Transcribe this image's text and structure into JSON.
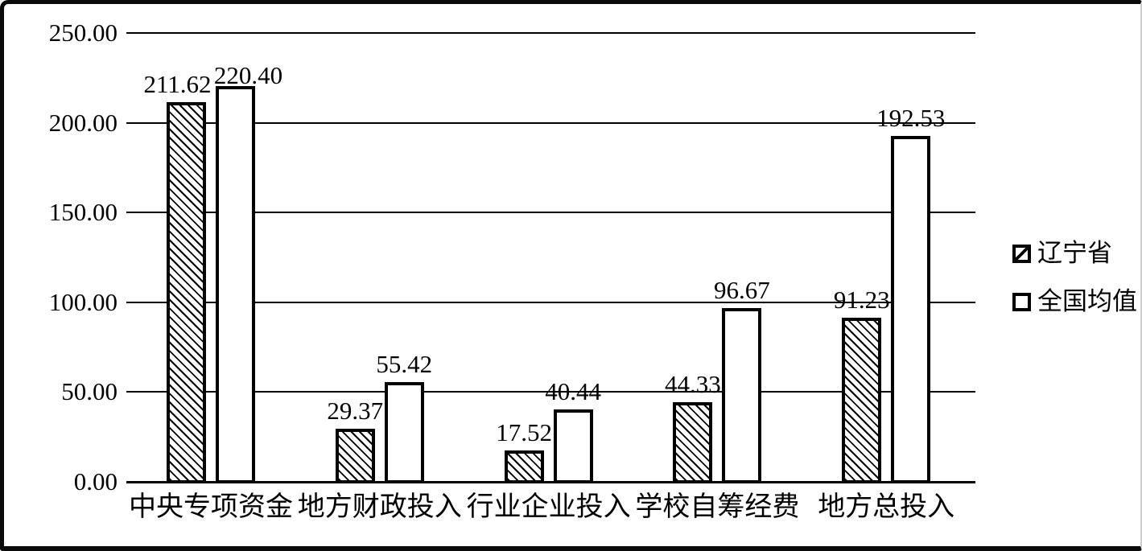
{
  "chart_data": {
    "type": "bar",
    "categories": [
      "中央专项资金",
      "地方财政投入",
      "行业企业投入",
      "学校自筹经费",
      "地方总投入"
    ],
    "series": [
      {
        "name": "辽宁省",
        "pattern": "diagonal-hatch",
        "values": [
          211.62,
          29.37,
          17.52,
          44.33,
          91.23
        ]
      },
      {
        "name": "全国均值",
        "pattern": "plain-white",
        "values": [
          220.4,
          55.42,
          40.44,
          96.67,
          192.53
        ]
      }
    ],
    "value_labels": [
      [
        "211.62",
        "29.37",
        "17.52",
        "44.33",
        "91.23"
      ],
      [
        "220.40",
        "55.42",
        "40.44",
        "96.67",
        "192.53"
      ]
    ],
    "y_ticks": [
      "250.00",
      "200.00",
      "150.00",
      "100.00",
      "50.00",
      "0.00"
    ],
    "ylim": [
      0,
      250
    ],
    "y_tick_step": 50,
    "grid": true,
    "legend_position": "right",
    "title": "",
    "xlabel": "",
    "ylabel": ""
  },
  "legend": {
    "items": [
      {
        "label": "辽宁省",
        "swatch": "hatched-square-icon"
      },
      {
        "label": "全国均值",
        "swatch": "plain-square-icon"
      }
    ]
  },
  "colors": {
    "ink": "#000000",
    "background": "#ffffff"
  }
}
